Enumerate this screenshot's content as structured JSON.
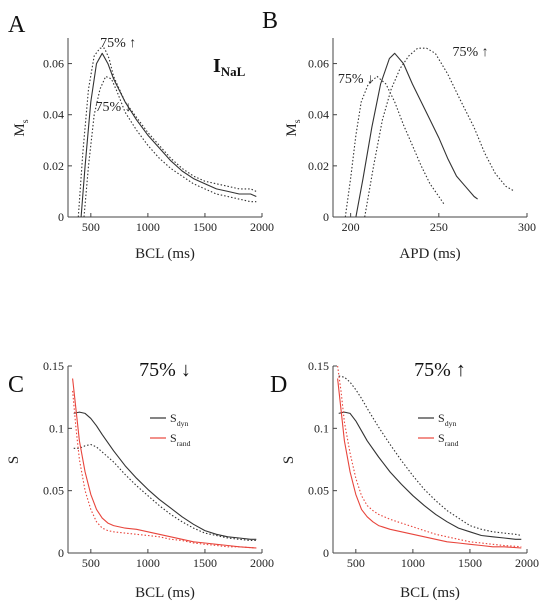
{
  "colors": {
    "black": "#333333",
    "red": "#e8453c"
  },
  "chart_data": [
    {
      "type": "line",
      "panel_label": "A",
      "title": "I",
      "title_subscript": "NaL",
      "xlabel": "BCL (ms)",
      "ylabel": "M",
      "ylabel_subscript": "s",
      "xlim": [
        300,
        2000
      ],
      "ylim": [
        0,
        0.07
      ],
      "xticks": [
        500,
        1000,
        1500,
        2000
      ],
      "yticks": [
        0,
        0.02,
        0.04,
        0.06
      ],
      "xtick_labels": [
        "500",
        "1000",
        "1500",
        "2000"
      ],
      "ytick_labels": [
        "0",
        "0.02",
        "0.04",
        "0.06"
      ],
      "annotations": [
        {
          "text": "75% ↑",
          "x": 740,
          "y": 0.0665
        },
        {
          "text": "75% ↓",
          "x": 700,
          "y": 0.0415
        }
      ],
      "series": [
        {
          "style": "solid",
          "color": "black",
          "x": [
            415,
            450,
            500,
            550,
            600,
            650,
            700,
            800,
            900,
            1000,
            1100,
            1200,
            1300,
            1400,
            1500,
            1600,
            1700,
            1800,
            1900,
            1950
          ],
          "y": [
            0.0,
            0.02,
            0.045,
            0.06,
            0.064,
            0.06,
            0.054,
            0.045,
            0.038,
            0.032,
            0.027,
            0.022,
            0.018,
            0.015,
            0.013,
            0.011,
            0.01,
            0.009,
            0.009,
            0.008
          ]
        },
        {
          "style": "dotted",
          "color": "black",
          "x": [
            390,
            430,
            480,
            530,
            580,
            620,
            660,
            700,
            800,
            900,
            1000,
            1100,
            1200,
            1300,
            1400,
            1500,
            1600,
            1700,
            1800,
            1900,
            1950
          ],
          "y": [
            0.0,
            0.025,
            0.05,
            0.063,
            0.066,
            0.066,
            0.062,
            0.055,
            0.045,
            0.039,
            0.033,
            0.028,
            0.023,
            0.019,
            0.016,
            0.014,
            0.013,
            0.012,
            0.011,
            0.011,
            0.01
          ]
        },
        {
          "style": "dotted",
          "color": "black",
          "x": [
            440,
            480,
            530,
            580,
            630,
            680,
            730,
            800,
            900,
            1000,
            1100,
            1200,
            1300,
            1400,
            1500,
            1600,
            1700,
            1800,
            1900,
            1950
          ],
          "y": [
            0.0,
            0.02,
            0.04,
            0.05,
            0.055,
            0.054,
            0.049,
            0.041,
            0.034,
            0.028,
            0.023,
            0.019,
            0.016,
            0.013,
            0.011,
            0.009,
            0.008,
            0.007,
            0.006,
            0.006
          ]
        }
      ]
    },
    {
      "type": "line",
      "panel_label": "B",
      "xlabel": "APD (ms)",
      "ylabel": "M",
      "ylabel_subscript": "s",
      "xlim": [
        190,
        300
      ],
      "ylim": [
        0,
        0.07
      ],
      "xticks": [
        200,
        250,
        300
      ],
      "yticks": [
        0,
        0.02,
        0.04,
        0.06
      ],
      "xtick_labels": [
        "200",
        "250",
        "300"
      ],
      "ytick_labels": [
        "0",
        "0.02",
        "0.04",
        "0.06"
      ],
      "annotations": [
        {
          "text": "75% ↑",
          "x": 268,
          "y": 0.063
        },
        {
          "text": "75% ↓",
          "x": 203,
          "y": 0.0525
        }
      ],
      "series": [
        {
          "style": "dotted",
          "color": "black",
          "x": [
            197,
            200,
            203,
            206,
            210,
            215,
            220,
            225,
            230,
            235,
            240,
            245,
            250,
            253
          ],
          "y": [
            0.0,
            0.015,
            0.032,
            0.045,
            0.052,
            0.055,
            0.052,
            0.045,
            0.036,
            0.028,
            0.02,
            0.013,
            0.008,
            0.005
          ]
        },
        {
          "style": "solid",
          "color": "black",
          "x": [
            203,
            207,
            212,
            217,
            222,
            225,
            230,
            235,
            240,
            245,
            250,
            255,
            260,
            265,
            270,
            272
          ],
          "y": [
            0.0,
            0.015,
            0.035,
            0.052,
            0.062,
            0.064,
            0.06,
            0.052,
            0.045,
            0.038,
            0.031,
            0.023,
            0.016,
            0.012,
            0.008,
            0.007
          ]
        },
        {
          "style": "dotted",
          "color": "black",
          "x": [
            208,
            213,
            218,
            223,
            228,
            233,
            238,
            243,
            248,
            255,
            262,
            270,
            276,
            282,
            288,
            293
          ],
          "y": [
            0.0,
            0.02,
            0.038,
            0.05,
            0.058,
            0.063,
            0.066,
            0.066,
            0.064,
            0.056,
            0.046,
            0.035,
            0.025,
            0.017,
            0.012,
            0.01
          ]
        }
      ]
    },
    {
      "type": "line",
      "panel_label": "C",
      "title": "75% ↓",
      "xlabel": "BCL (ms)",
      "ylabel": "S",
      "xlim": [
        300,
        2000
      ],
      "ylim": [
        0,
        0.15
      ],
      "xticks": [
        500,
        1000,
        1500,
        2000
      ],
      "yticks": [
        0,
        0.05,
        0.1,
        0.15
      ],
      "xtick_labels": [
        "500",
        "1000",
        "1500",
        "2000"
      ],
      "ytick_labels": [
        "0",
        "0.05",
        "0.1",
        "0.15"
      ],
      "legend": [
        {
          "label": "S",
          "subscript": "dyn",
          "color": "black"
        },
        {
          "label": "S",
          "subscript": "rand",
          "color": "red"
        }
      ],
      "legend_position": "top-right",
      "series": [
        {
          "style": "solid",
          "color": "black",
          "x": [
            350,
            400,
            450,
            500,
            550,
            600,
            700,
            800,
            900,
            1000,
            1100,
            1200,
            1300,
            1400,
            1500,
            1600,
            1700,
            1800,
            1900,
            1950
          ],
          "y": [
            0.112,
            0.113,
            0.112,
            0.108,
            0.102,
            0.095,
            0.082,
            0.07,
            0.06,
            0.051,
            0.043,
            0.036,
            0.029,
            0.023,
            0.018,
            0.015,
            0.013,
            0.012,
            0.011,
            0.011
          ]
        },
        {
          "style": "dotted",
          "color": "black",
          "x": [
            350,
            400,
            450,
            500,
            550,
            600,
            700,
            800,
            900,
            1000,
            1100,
            1200,
            1300,
            1400,
            1500,
            1600,
            1700,
            1800,
            1900,
            1950
          ],
          "y": [
            0.084,
            0.084,
            0.086,
            0.087,
            0.085,
            0.081,
            0.073,
            0.063,
            0.054,
            0.046,
            0.038,
            0.031,
            0.025,
            0.02,
            0.016,
            0.014,
            0.012,
            0.011,
            0.01,
            0.01
          ]
        },
        {
          "style": "solid",
          "color": "red",
          "x": [
            340,
            370,
            400,
            450,
            500,
            550,
            600,
            650,
            700,
            800,
            900,
            1000,
            1100,
            1200,
            1300,
            1400,
            1500,
            1600,
            1700,
            1800,
            1950
          ],
          "y": [
            0.14,
            0.115,
            0.09,
            0.065,
            0.047,
            0.035,
            0.028,
            0.024,
            0.022,
            0.02,
            0.019,
            0.017,
            0.015,
            0.013,
            0.011,
            0.009,
            0.008,
            0.007,
            0.006,
            0.005,
            0.004
          ]
        },
        {
          "style": "dotted",
          "color": "red",
          "x": [
            340,
            370,
            400,
            450,
            500,
            550,
            600,
            650,
            700,
            800,
            900,
            1000,
            1100,
            1200,
            1300,
            1400,
            1500,
            1600,
            1700,
            1800,
            1950
          ],
          "y": [
            0.13,
            0.1,
            0.075,
            0.05,
            0.035,
            0.025,
            0.02,
            0.018,
            0.017,
            0.016,
            0.015,
            0.014,
            0.013,
            0.011,
            0.01,
            0.008,
            0.007,
            0.006,
            0.005,
            0.005,
            0.004
          ]
        }
      ]
    },
    {
      "type": "line",
      "panel_label": "D",
      "title": "75% ↑",
      "xlabel": "BCL (ms)",
      "ylabel": "S",
      "xlim": [
        300,
        2000
      ],
      "ylim": [
        0,
        0.15
      ],
      "xticks": [
        500,
        1000,
        1500,
        2000
      ],
      "yticks": [
        0,
        0.05,
        0.1,
        0.15
      ],
      "xtick_labels": [
        "500",
        "1000",
        "1500",
        "2000"
      ],
      "ytick_labels": [
        "0",
        "0.05",
        "0.1",
        "0.15"
      ],
      "legend": [
        {
          "label": "S",
          "subscript": "dyn",
          "color": "black"
        },
        {
          "label": "S",
          "subscript": "rand",
          "color": "red"
        }
      ],
      "legend_position": "top-right",
      "series": [
        {
          "style": "solid",
          "color": "black",
          "x": [
            350,
            400,
            450,
            500,
            550,
            600,
            700,
            800,
            900,
            1000,
            1100,
            1200,
            1300,
            1400,
            1500,
            1600,
            1700,
            1800,
            1900,
            1950
          ],
          "y": [
            0.112,
            0.113,
            0.112,
            0.106,
            0.098,
            0.09,
            0.077,
            0.065,
            0.055,
            0.046,
            0.038,
            0.031,
            0.025,
            0.02,
            0.017,
            0.014,
            0.013,
            0.012,
            0.011,
            0.011
          ]
        },
        {
          "style": "dotted",
          "color": "black",
          "x": [
            350,
            400,
            450,
            500,
            550,
            600,
            700,
            800,
            900,
            1000,
            1100,
            1200,
            1300,
            1400,
            1500,
            1600,
            1700,
            1800,
            1900,
            1950
          ],
          "y": [
            0.142,
            0.141,
            0.137,
            0.131,
            0.124,
            0.116,
            0.101,
            0.087,
            0.074,
            0.062,
            0.051,
            0.042,
            0.034,
            0.028,
            0.022,
            0.019,
            0.017,
            0.016,
            0.015,
            0.014
          ]
        },
        {
          "style": "solid",
          "color": "red",
          "x": [
            340,
            370,
            400,
            450,
            500,
            550,
            600,
            650,
            700,
            800,
            900,
            1000,
            1100,
            1200,
            1300,
            1400,
            1500,
            1600,
            1700,
            1800,
            1950
          ],
          "y": [
            0.14,
            0.115,
            0.09,
            0.065,
            0.047,
            0.035,
            0.029,
            0.025,
            0.022,
            0.019,
            0.017,
            0.015,
            0.013,
            0.011,
            0.009,
            0.008,
            0.007,
            0.006,
            0.005,
            0.005,
            0.004
          ]
        },
        {
          "style": "dotted",
          "color": "red",
          "x": [
            340,
            370,
            400,
            450,
            500,
            550,
            600,
            650,
            700,
            800,
            900,
            1000,
            1100,
            1200,
            1300,
            1400,
            1500,
            1600,
            1700,
            1800,
            1950
          ],
          "y": [
            0.15,
            0.13,
            0.105,
            0.08,
            0.06,
            0.046,
            0.038,
            0.034,
            0.031,
            0.027,
            0.024,
            0.021,
            0.018,
            0.015,
            0.013,
            0.011,
            0.009,
            0.008,
            0.007,
            0.006,
            0.005
          ]
        }
      ]
    }
  ]
}
